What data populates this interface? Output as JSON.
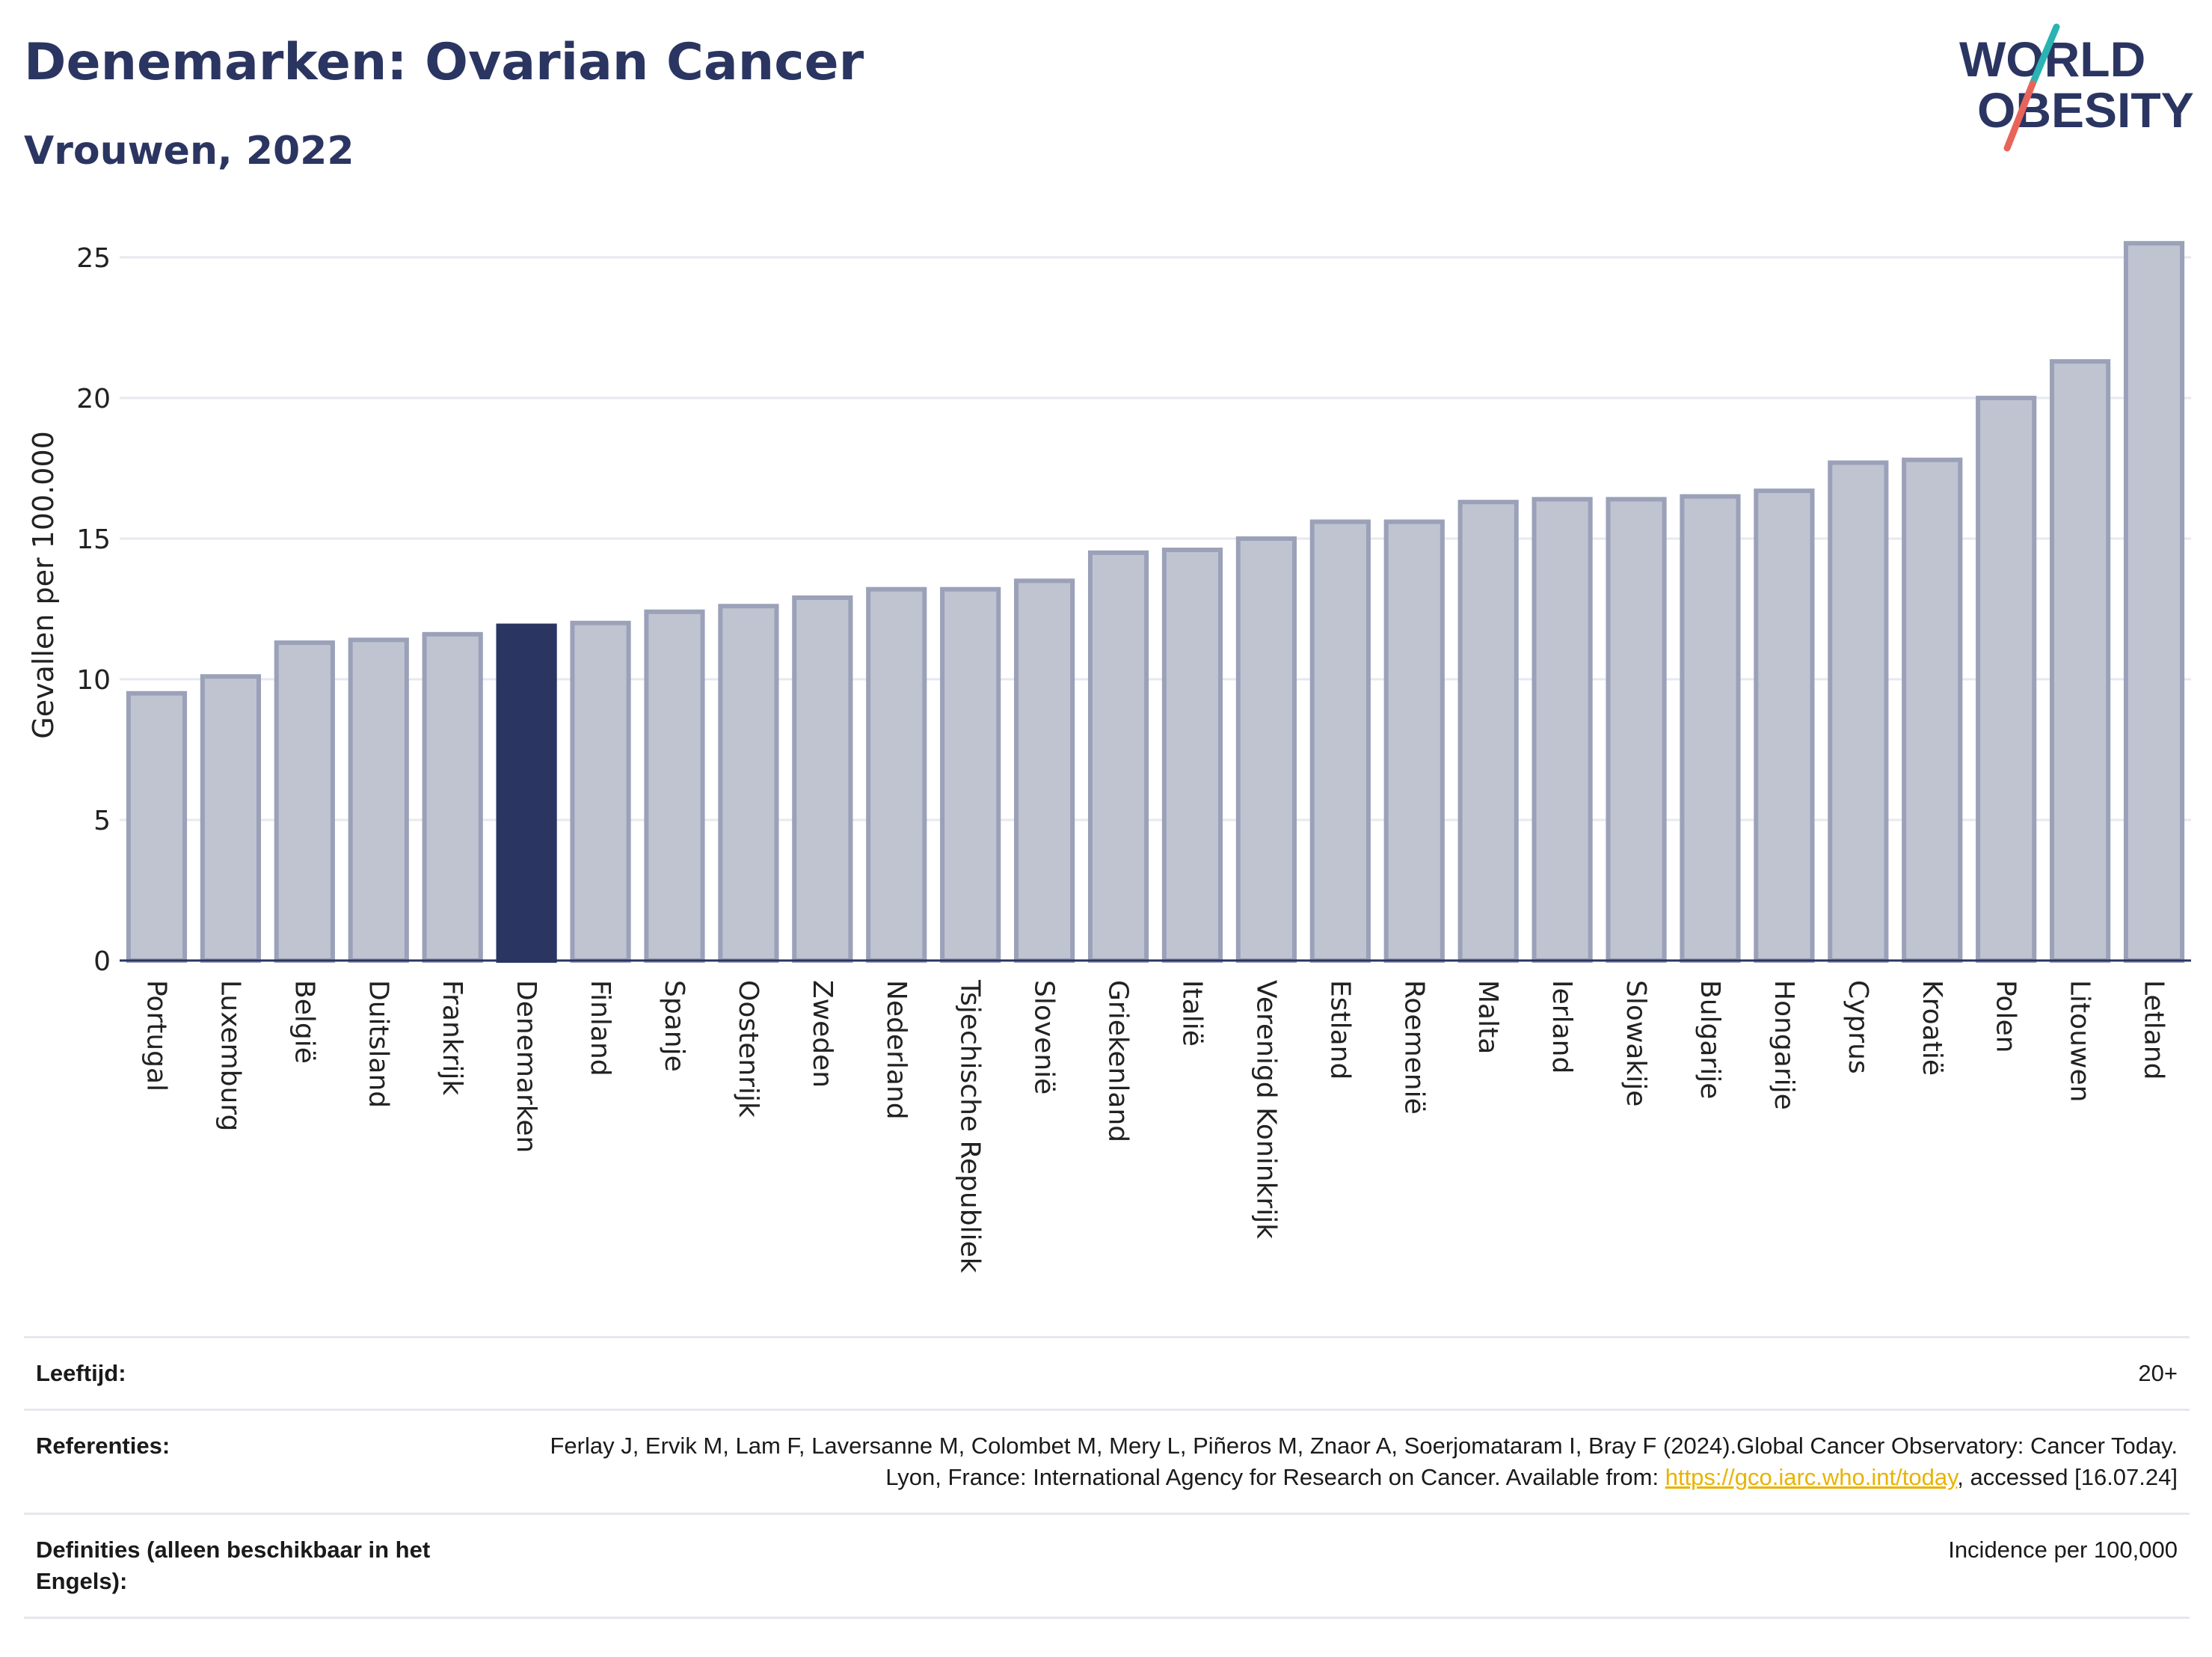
{
  "header": {
    "title": "Denemarken: Ovarian Cancer",
    "subtitle": "Vrouwen, 2022"
  },
  "logo": {
    "line1": "WORLD",
    "line2": "OBESITY",
    "text_color": "#2b3561",
    "slash_colors": [
      "#2bb3b3",
      "#e8645a"
    ]
  },
  "chart_data": {
    "type": "bar",
    "ylabel": "Gevallen per 100.000",
    "ylim": [
      0,
      26
    ],
    "yticks": [
      0,
      5,
      10,
      15,
      20,
      25
    ],
    "grid": true,
    "highlight": "Denemarken",
    "colors": {
      "bar": "#c0c4d1",
      "bar_outline": "#9aa1b8",
      "highlight": "#2b3561"
    },
    "categories": [
      "Portugal",
      "Luxemburg",
      "België",
      "Duitsland",
      "Frankrijk",
      "Denemarken",
      "Finland",
      "Spanje",
      "Oostenrijk",
      "Zweden",
      "Nederland",
      "Tsjechische Republiek",
      "Slovenië",
      "Griekenland",
      "Italië",
      "Verenigd Koninkrijk",
      "Estland",
      "Roemenië",
      "Malta",
      "Ierland",
      "Slowakije",
      "Bulgarije",
      "Hongarije",
      "Cyprus",
      "Kroatië",
      "Polen",
      "Litouwen",
      "Letland"
    ],
    "values": [
      9.5,
      10.1,
      11.3,
      11.4,
      11.6,
      11.9,
      12.0,
      12.4,
      12.6,
      12.9,
      13.2,
      13.2,
      13.5,
      14.5,
      14.6,
      15.0,
      15.6,
      15.6,
      16.3,
      16.4,
      16.4,
      16.5,
      16.7,
      17.7,
      17.8,
      20.0,
      21.3,
      25.5
    ]
  },
  "info": {
    "age_label": "Leeftijd:",
    "age_value": "20+",
    "refs_label": "Referenties:",
    "refs_text_1": "Ferlay J, Ervik M, Lam F, Laversanne M, Colombet M, Mery L, Piñeros M, Znaor A, Soerjomataram I, Bray F (2024).Global Cancer Observatory: Cancer Today. Lyon, France: International Agency for Research on Cancer. Available from: ",
    "refs_link": "https://gco.iarc.who.int/today",
    "refs_text_2": ", accessed [16.07.24]",
    "defs_label": "Definities (alleen beschikbaar in het Engels):",
    "defs_value": "Incidence per 100,000"
  }
}
